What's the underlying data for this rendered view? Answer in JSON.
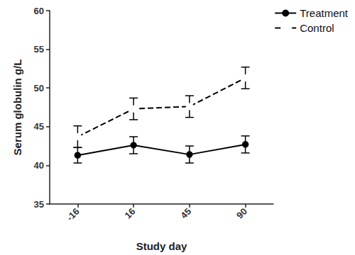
{
  "chart_data": {
    "type": "line",
    "x_label": "Study day",
    "y_label": "Serum globulin g/L",
    "categories": [
      "-16",
      "16",
      "45",
      "90"
    ],
    "series": [
      {
        "name": "Treatment",
        "color": "#000000",
        "marker": "circle",
        "line_style": "solid",
        "values": [
          41.3,
          42.6,
          41.4,
          42.7
        ],
        "errors": [
          1.0,
          1.1,
          1.1,
          1.1
        ]
      },
      {
        "name": "Control",
        "color": "#000000",
        "marker": "open-square",
        "line_style": "dashed",
        "values": [
          43.7,
          47.3,
          47.6,
          51.3
        ],
        "errors": [
          1.4,
          1.4,
          1.4,
          1.4
        ]
      }
    ],
    "ylim": [
      35,
      60
    ],
    "yticks": [
      35,
      40,
      45,
      50,
      55,
      60
    ],
    "grid": false,
    "legend": "top-right"
  }
}
